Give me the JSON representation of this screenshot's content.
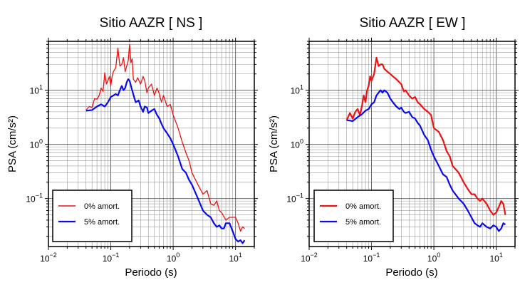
{
  "chart_data": [
    {
      "type": "line",
      "title": "Sitio AAZR [ NS ]",
      "xlabel": "Periodo (s)",
      "ylabel": "PSA (cm/s²)",
      "x_scale": "log",
      "y_scale": "log",
      "xlim": [
        0.01,
        20
      ],
      "ylim": [
        0.013,
        80
      ],
      "grid": true,
      "legend_placement": "bottom-left",
      "x_ticks": [
        {
          "value": 0.01,
          "base": "10",
          "exp": "−2"
        },
        {
          "value": 0.1,
          "base": "10",
          "exp": "−1"
        },
        {
          "value": 1,
          "base": "10",
          "exp": "0"
        },
        {
          "value": 10,
          "base": "10",
          "exp": "1"
        }
      ],
      "y_ticks": [
        {
          "value": 0.1,
          "base": "10",
          "exp": "−1"
        },
        {
          "value": 1,
          "base": "10",
          "exp": "0"
        },
        {
          "value": 10,
          "base": "10",
          "exp": "1"
        }
      ],
      "series": [
        {
          "name": "0% amort.",
          "color": "#ee1111",
          "x": [
            0.04,
            0.045,
            0.05,
            0.055,
            0.06,
            0.065,
            0.07,
            0.075,
            0.08,
            0.085,
            0.09,
            0.095,
            0.1,
            0.105,
            0.11,
            0.12,
            0.13,
            0.14,
            0.15,
            0.16,
            0.17,
            0.18,
            0.19,
            0.2,
            0.21,
            0.22,
            0.23,
            0.25,
            0.27,
            0.3,
            0.33,
            0.35,
            0.38,
            0.4,
            0.45,
            0.5,
            0.55,
            0.6,
            0.65,
            0.7,
            0.8,
            0.9,
            1.0,
            1.2,
            1.4,
            1.6,
            1.8,
            2.0,
            2.5,
            3.0,
            3.5,
            4.0,
            4.5,
            5.0,
            5.5,
            6.0,
            7.0,
            8.0,
            9.0,
            10.0,
            11.0,
            12.0,
            13.0,
            14.0
          ],
          "y": [
            4.3,
            5.0,
            4.8,
            7.0,
            6.8,
            8.0,
            11.0,
            9.5,
            21.0,
            13.0,
            15.0,
            18.0,
            12.0,
            18.0,
            22.0,
            26.0,
            60.0,
            28.0,
            30.0,
            40.0,
            22.0,
            28.0,
            35.0,
            70.0,
            32.0,
            38.0,
            16.0,
            14.0,
            17.0,
            13.0,
            18.0,
            15.0,
            9.0,
            11.0,
            13.0,
            8.0,
            11.0,
            8.5,
            6.0,
            8.0,
            5.0,
            5.5,
            3.5,
            2.0,
            1.1,
            0.7,
            0.5,
            0.3,
            0.18,
            0.12,
            0.14,
            0.08,
            0.075,
            0.09,
            0.06,
            0.055,
            0.04,
            0.045,
            0.045,
            0.045,
            0.035,
            0.025,
            0.03,
            0.028
          ]
        },
        {
          "name": "5% amort.",
          "color": "#0a0af0",
          "x": [
            0.04,
            0.05,
            0.06,
            0.07,
            0.08,
            0.09,
            0.1,
            0.11,
            0.12,
            0.13,
            0.14,
            0.15,
            0.16,
            0.17,
            0.18,
            0.19,
            0.2,
            0.22,
            0.25,
            0.28,
            0.3,
            0.33,
            0.35,
            0.38,
            0.4,
            0.45,
            0.5,
            0.55,
            0.6,
            0.65,
            0.7,
            0.8,
            0.9,
            1.0,
            1.2,
            1.4,
            1.6,
            1.8,
            2.0,
            2.5,
            3.0,
            3.5,
            4.0,
            4.5,
            5.0,
            5.5,
            6.0,
            6.5,
            7.0,
            8.0,
            9.0,
            10.0,
            11.0,
            12.0,
            13.0,
            14.0
          ],
          "y": [
            4.2,
            4.3,
            5.0,
            5.5,
            5.0,
            6.0,
            7.5,
            8.0,
            8.5,
            8.0,
            10.0,
            12.0,
            10.0,
            11.0,
            14.0,
            16.0,
            15.0,
            10.0,
            6.0,
            6.5,
            5.0,
            4.0,
            5.0,
            4.8,
            3.8,
            4.2,
            4.5,
            3.5,
            3.0,
            2.4,
            2.0,
            1.6,
            1.3,
            1.0,
            0.6,
            0.35,
            0.3,
            0.22,
            0.18,
            0.1,
            0.06,
            0.05,
            0.045,
            0.035,
            0.03,
            0.032,
            0.028,
            0.028,
            0.035,
            0.035,
            0.025,
            0.018,
            0.016,
            0.017,
            0.015,
            0.017
          ]
        }
      ]
    },
    {
      "type": "line",
      "title": "Sitio AAZR [ EW ]",
      "xlabel": "Periodo (s)",
      "ylabel": "PSA (cm/s²)",
      "x_scale": "log",
      "y_scale": "log",
      "xlim": [
        0.01,
        20
      ],
      "ylim": [
        0.013,
        80
      ],
      "grid": true,
      "legend_placement": "bottom-left",
      "x_ticks": [
        {
          "value": 0.01,
          "base": "10",
          "exp": "−2"
        },
        {
          "value": 0.1,
          "base": "10",
          "exp": "−1"
        },
        {
          "value": 1,
          "base": "10",
          "exp": "0"
        },
        {
          "value": 10,
          "base": "10",
          "exp": "1"
        }
      ],
      "y_ticks": [
        {
          "value": 0.1,
          "base": "10",
          "exp": "−1"
        },
        {
          "value": 1,
          "base": "10",
          "exp": "0"
        },
        {
          "value": 10,
          "base": "10",
          "exp": "1"
        }
      ],
      "series": [
        {
          "name": "0% amort.",
          "color": "#ee1111",
          "x": [
            0.04,
            0.045,
            0.05,
            0.055,
            0.06,
            0.065,
            0.07,
            0.075,
            0.08,
            0.085,
            0.09,
            0.095,
            0.1,
            0.11,
            0.12,
            0.13,
            0.14,
            0.15,
            0.16,
            0.18,
            0.2,
            0.22,
            0.25,
            0.28,
            0.3,
            0.33,
            0.35,
            0.4,
            0.45,
            0.5,
            0.55,
            0.6,
            0.7,
            0.8,
            0.9,
            1.0,
            1.2,
            1.4,
            1.6,
            1.8,
            2.0,
            2.5,
            3.0,
            3.5,
            4.0,
            4.5,
            5.0,
            5.5,
            6.0,
            7.0,
            8.0,
            9.0,
            10.0,
            11.0,
            12.0,
            13.0,
            14.0
          ],
          "y": [
            2.8,
            3.8,
            3.0,
            4.0,
            4.5,
            3.5,
            5.0,
            8.0,
            6.0,
            10.0,
            12.0,
            18.0,
            15.0,
            20.0,
            40.0,
            28.0,
            30.0,
            30.0,
            25.0,
            22.0,
            20.0,
            18.0,
            16.0,
            14.0,
            13.0,
            9.5,
            10.0,
            8.0,
            7.0,
            7.5,
            6.0,
            5.5,
            4.5,
            4.0,
            3.5,
            2.0,
            1.7,
            1.2,
            0.75,
            0.6,
            0.4,
            0.3,
            0.2,
            0.15,
            0.12,
            0.12,
            0.1,
            0.09,
            0.1,
            0.08,
            0.06,
            0.05,
            0.055,
            0.07,
            0.09,
            0.08,
            0.05
          ]
        },
        {
          "name": "5% amort.",
          "color": "#0a0af0",
          "x": [
            0.04,
            0.05,
            0.06,
            0.07,
            0.08,
            0.09,
            0.1,
            0.11,
            0.12,
            0.13,
            0.14,
            0.15,
            0.16,
            0.18,
            0.2,
            0.22,
            0.25,
            0.28,
            0.3,
            0.33,
            0.35,
            0.4,
            0.45,
            0.5,
            0.55,
            0.6,
            0.7,
            0.8,
            0.9,
            1.0,
            1.2,
            1.4,
            1.6,
            1.8,
            2.0,
            2.5,
            3.0,
            3.5,
            4.0,
            4.5,
            5.0,
            5.5,
            6.0,
            7.0,
            8.0,
            9.0,
            10.0,
            11.0,
            12.0,
            13.0,
            14.0
          ],
          "y": [
            2.8,
            2.7,
            3.2,
            3.6,
            4.2,
            4.5,
            5.5,
            6.0,
            8.0,
            9.0,
            10.0,
            9.0,
            10.0,
            9.0,
            7.0,
            6.0,
            5.0,
            4.5,
            4.8,
            4.0,
            3.8,
            4.0,
            3.2,
            3.0,
            2.5,
            2.2,
            1.5,
            1.2,
            0.8,
            0.6,
            0.4,
            0.28,
            0.25,
            0.18,
            0.14,
            0.1,
            0.08,
            0.06,
            0.045,
            0.035,
            0.032,
            0.03,
            0.035,
            0.03,
            0.028,
            0.032,
            0.03,
            0.025,
            0.028,
            0.035,
            0.033
          ]
        }
      ]
    }
  ]
}
